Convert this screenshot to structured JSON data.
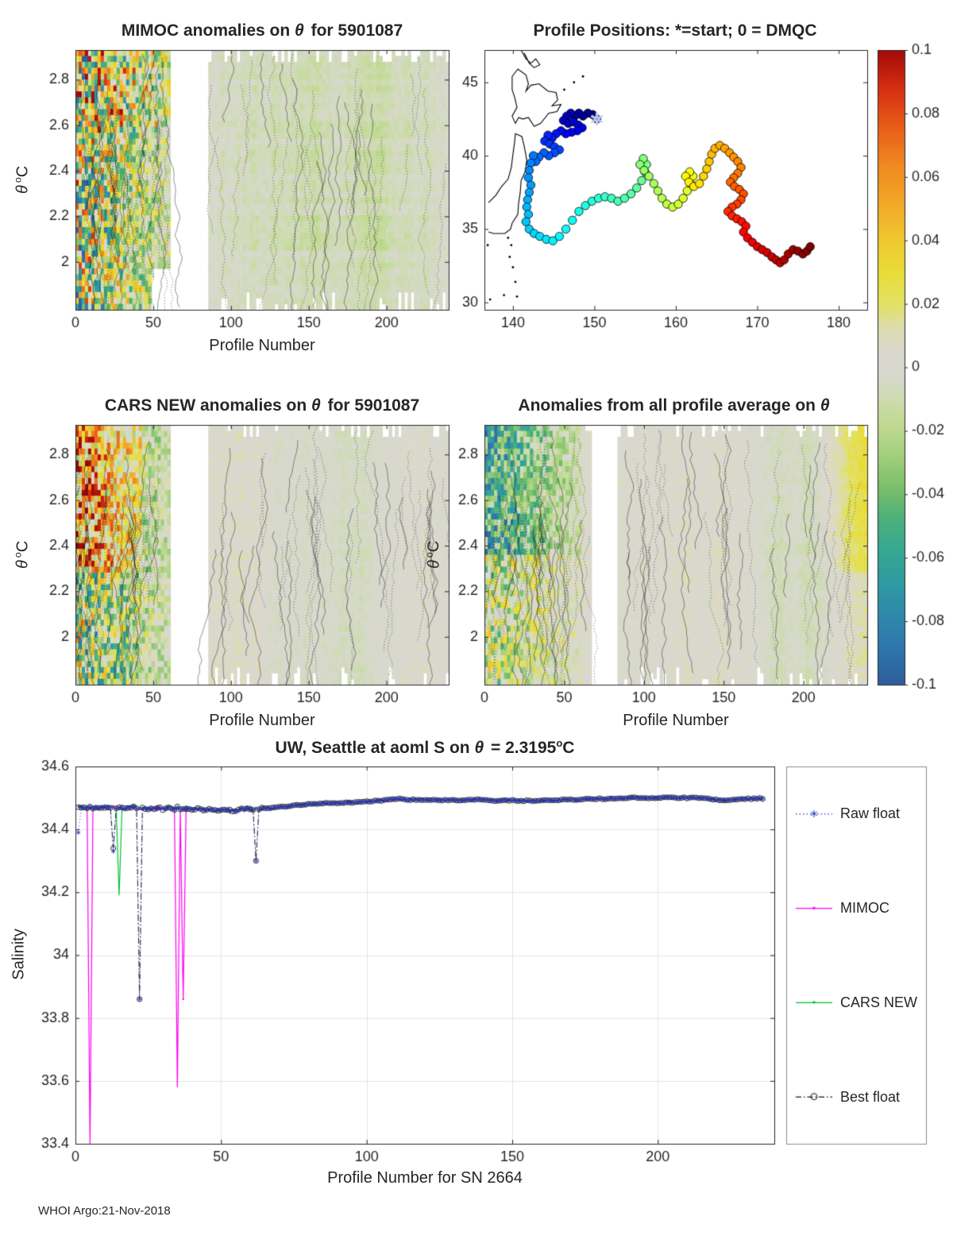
{
  "figure": {
    "footer": "WHOI Argo:21-Nov-2018",
    "bg": "#ffffff",
    "axis_color": "#262626",
    "grid_color": "#e4e4e4",
    "font_color": "#262626"
  },
  "colorbar": {
    "vmin": -0.1,
    "vmax": 0.1,
    "tick_values": [
      0.1,
      0.08,
      0.06,
      0.04,
      0.02,
      0,
      -0.02,
      -0.04,
      -0.06,
      -0.08,
      -0.1
    ],
    "tick_labels": [
      "0.1",
      "0.08",
      "0.06",
      "0.04",
      "0.02",
      "0",
      "-0.02",
      "-0.04",
      "-0.06",
      "-0.08",
      "-0.1"
    ],
    "stops": [
      [
        -0.1,
        "#2f5e9e"
      ],
      [
        -0.085,
        "#2e7dae"
      ],
      [
        -0.07,
        "#2f97a5"
      ],
      [
        -0.058,
        "#36a892"
      ],
      [
        -0.048,
        "#4cb07b"
      ],
      [
        -0.038,
        "#7abf6b"
      ],
      [
        -0.028,
        "#a2cf7c"
      ],
      [
        -0.018,
        "#c0da90"
      ],
      [
        -0.01,
        "#cedbb1"
      ],
      [
        -0.003,
        "#d7d9cb"
      ],
      [
        0.004,
        "#dad8d0"
      ],
      [
        0.012,
        "#dddcb2"
      ],
      [
        0.02,
        "#e2e163"
      ],
      [
        0.03,
        "#e9dc38"
      ],
      [
        0.04,
        "#efc92f"
      ],
      [
        0.052,
        "#f2a828"
      ],
      [
        0.064,
        "#f08821"
      ],
      [
        0.076,
        "#e85c19"
      ],
      [
        0.088,
        "#d42f12"
      ],
      [
        0.1,
        "#a50a0a"
      ]
    ]
  },
  "chart_data": [
    {
      "id": "mimoc",
      "type": "heatmap",
      "title": "MIMOC anomalies on θ for 5901087",
      "title_parts": {
        "pre": "MIMOC anomalies on ",
        "theta": "θ",
        "post": " for 5901087"
      },
      "xlabel": "Profile Number",
      "ylabel_parts": {
        "theta": "θ",
        "sup": "o",
        "post": "C"
      },
      "xlim": [
        0,
        240
      ],
      "ylim": [
        1.79,
        2.93
      ],
      "xtick_values": [
        0,
        50,
        100,
        150,
        200
      ],
      "xtick_labels": [
        "0",
        "50",
        "100",
        "150",
        "200"
      ],
      "ytick_values": [
        2.8,
        2.6,
        2.4,
        2.2,
        2
      ],
      "ytick_labels": [
        "2.8",
        "2.6",
        "2.4",
        "2.2",
        "2"
      ],
      "gap_profiles": [
        [
          62,
          86
        ]
      ],
      "strong_anomaly_profiles": [
        1,
        60
      ],
      "field_character": "near-zero gray/pale-green anomalies with dense solid and dotted contour lines; chaotic mixed red/blue anomalies in first 60 profiles"
    },
    {
      "id": "map",
      "type": "scatter",
      "title": "Profile Positions: *=start; 0 = DMQC",
      "xlim": [
        136.5,
        183.5
      ],
      "ylim": [
        29.5,
        47.2
      ],
      "xtick_values": [
        140,
        150,
        160,
        170,
        180
      ],
      "xtick_labels": [
        "140",
        "150",
        "160",
        "170",
        "180"
      ],
      "ytick_values": [
        30,
        35,
        40,
        45
      ],
      "ytick_labels": [
        "30",
        "35",
        "40",
        "45"
      ],
      "colormap": "jet",
      "start_marker": "*",
      "track_lonlat": [
        [
          150.3,
          42.5
        ],
        [
          149.8,
          42.8
        ],
        [
          149.2,
          42.9
        ],
        [
          148.6,
          42.7
        ],
        [
          148.1,
          42.9
        ],
        [
          147.6,
          42.7
        ],
        [
          147.1,
          42.9
        ],
        [
          146.6,
          42.7
        ],
        [
          146.2,
          42.4
        ],
        [
          146.8,
          42.2
        ],
        [
          147.4,
          42.3
        ],
        [
          148.0,
          42.1
        ],
        [
          148.5,
          41.9
        ],
        [
          147.9,
          41.7
        ],
        [
          147.2,
          41.6
        ],
        [
          146.5,
          41.5
        ],
        [
          145.9,
          41.7
        ],
        [
          145.3,
          41.5
        ],
        [
          144.8,
          41.2
        ],
        [
          144.3,
          41.4
        ],
        [
          143.9,
          41.0
        ],
        [
          144.5,
          40.8
        ],
        [
          145.1,
          40.6
        ],
        [
          145.7,
          40.4
        ],
        [
          145.1,
          40.2
        ],
        [
          144.4,
          40.0
        ],
        [
          143.8,
          40.2
        ],
        [
          143.2,
          39.9
        ],
        [
          142.8,
          39.6
        ],
        [
          142.5,
          40.0
        ],
        [
          142.2,
          39.5
        ],
        [
          142.0,
          39.0
        ],
        [
          141.9,
          38.5
        ],
        [
          142.2,
          38.0
        ],
        [
          142.0,
          37.5
        ],
        [
          141.8,
          37.0
        ],
        [
          141.7,
          36.5
        ],
        [
          141.9,
          36.0
        ],
        [
          141.6,
          35.5
        ],
        [
          142.0,
          35.0
        ],
        [
          142.6,
          34.7
        ],
        [
          143.3,
          34.5
        ],
        [
          144.1,
          34.3
        ],
        [
          144.9,
          34.2
        ],
        [
          145.7,
          34.5
        ],
        [
          146.5,
          35.0
        ],
        [
          147.3,
          35.6
        ],
        [
          148.1,
          36.2
        ],
        [
          148.9,
          36.6
        ],
        [
          149.7,
          36.9
        ],
        [
          150.5,
          37.1
        ],
        [
          151.3,
          37.2
        ],
        [
          152.1,
          37.1
        ],
        [
          152.9,
          36.9
        ],
        [
          153.7,
          37.1
        ],
        [
          154.5,
          37.4
        ],
        [
          155.2,
          37.8
        ],
        [
          155.8,
          38.3
        ],
        [
          156.2,
          38.9
        ],
        [
          156.4,
          39.4
        ],
        [
          156.0,
          39.8
        ],
        [
          155.6,
          39.4
        ],
        [
          156.1,
          39.0
        ],
        [
          156.7,
          38.6
        ],
        [
          157.3,
          38.1
        ],
        [
          157.8,
          37.6
        ],
        [
          158.3,
          37.1
        ],
        [
          158.9,
          36.7
        ],
        [
          159.6,
          36.5
        ],
        [
          160.3,
          36.7
        ],
        [
          160.9,
          37.1
        ],
        [
          161.4,
          37.6
        ],
        [
          161.8,
          38.1
        ],
        [
          162.1,
          38.6
        ],
        [
          161.7,
          38.9
        ],
        [
          161.2,
          38.6
        ],
        [
          161.6,
          38.2
        ],
        [
          162.2,
          37.9
        ],
        [
          162.9,
          38.1
        ],
        [
          163.4,
          38.6
        ],
        [
          163.8,
          39.1
        ],
        [
          164.1,
          39.6
        ],
        [
          164.4,
          40.1
        ],
        [
          164.8,
          40.5
        ],
        [
          165.4,
          40.7
        ],
        [
          166.0,
          40.5
        ],
        [
          166.6,
          40.2
        ],
        [
          167.1,
          39.9
        ],
        [
          167.6,
          39.6
        ],
        [
          168.0,
          39.2
        ],
        [
          167.6,
          38.8
        ],
        [
          167.1,
          38.5
        ],
        [
          166.7,
          38.2
        ],
        [
          167.2,
          37.9
        ],
        [
          167.8,
          37.7
        ],
        [
          168.3,
          37.4
        ],
        [
          168.0,
          37.0
        ],
        [
          167.5,
          36.7
        ],
        [
          166.9,
          36.5
        ],
        [
          166.4,
          36.2
        ],
        [
          166.9,
          35.9
        ],
        [
          167.5,
          35.7
        ],
        [
          168.1,
          35.5
        ],
        [
          168.6,
          35.2
        ],
        [
          168.3,
          34.8
        ],
        [
          168.8,
          34.4
        ],
        [
          169.4,
          34.1
        ],
        [
          170.0,
          33.8
        ],
        [
          170.6,
          33.6
        ],
        [
          171.2,
          33.4
        ],
        [
          171.8,
          33.1
        ],
        [
          172.3,
          32.9
        ],
        [
          172.8,
          32.7
        ],
        [
          173.3,
          32.9
        ],
        [
          173.8,
          33.3
        ],
        [
          174.4,
          33.6
        ],
        [
          175.0,
          33.5
        ],
        [
          175.6,
          33.3
        ],
        [
          176.1,
          33.5
        ],
        [
          176.5,
          33.8
        ]
      ],
      "coastlines": [
        [
          [
            139.9,
            45.4
          ],
          [
            140.6,
            45.9
          ],
          [
            141.6,
            45.5
          ],
          [
            141.9,
            44.9
          ],
          [
            141.6,
            44.4
          ],
          [
            142.2,
            44.8
          ],
          [
            143.2,
            44.9
          ],
          [
            144.3,
            44.4
          ],
          [
            145.3,
            44.3
          ],
          [
            145.5,
            43.8
          ],
          [
            144.8,
            43.4
          ],
          [
            145.9,
            43.5
          ],
          [
            145.4,
            43.0
          ],
          [
            144.4,
            42.9
          ],
          [
            143.4,
            42.2
          ],
          [
            142.6,
            42.0
          ],
          [
            141.9,
            42.6
          ],
          [
            141.2,
            42.5
          ],
          [
            140.7,
            42.6
          ],
          [
            140.3,
            42.2
          ],
          [
            139.9,
            42.7
          ],
          [
            140.5,
            43.3
          ],
          [
            140.2,
            44.0
          ],
          [
            139.9,
            44.5
          ],
          [
            139.9,
            45.4
          ]
        ],
        [
          [
            141.0,
            47.2
          ],
          [
            141.6,
            46.6
          ],
          [
            142.2,
            46.3
          ],
          [
            142.8,
            46.6
          ],
          [
            143.3,
            46.2
          ],
          [
            142.6,
            46.0
          ],
          [
            142.0,
            46.3
          ],
          [
            141.4,
            47.0
          ]
        ],
        [
          [
            137.0,
            36.8
          ],
          [
            137.9,
            37.3
          ],
          [
            138.6,
            37.9
          ],
          [
            139.4,
            38.4
          ],
          [
            139.8,
            39.2
          ],
          [
            140.0,
            40.1
          ],
          [
            140.2,
            40.9
          ],
          [
            140.3,
            41.5
          ],
          [
            141.1,
            41.3
          ],
          [
            141.4,
            40.6
          ],
          [
            141.7,
            39.7
          ],
          [
            141.5,
            38.9
          ],
          [
            141.0,
            38.3
          ],
          [
            140.9,
            37.5
          ],
          [
            140.7,
            36.8
          ],
          [
            140.6,
            36.0
          ],
          [
            139.9,
            35.4
          ],
          [
            139.7,
            35.0
          ],
          [
            139.0,
            34.7
          ],
          [
            138.3,
            34.7
          ],
          [
            137.6,
            34.7
          ],
          [
            137.0,
            34.8
          ]
        ]
      ],
      "islands": [
        [
          139.4,
          34.4
        ],
        [
          139.8,
          33.9
        ],
        [
          139.6,
          33.1
        ],
        [
          140.0,
          32.4
        ],
        [
          140.3,
          31.4
        ],
        [
          140.5,
          30.4
        ],
        [
          138.9,
          30.5
        ],
        [
          136.9,
          33.9
        ],
        [
          137.2,
          30.2
        ],
        [
          146.3,
          44.5
        ],
        [
          147.5,
          45.0
        ],
        [
          148.6,
          45.4
        ]
      ]
    },
    {
      "id": "cars",
      "type": "heatmap",
      "title": "CARS NEW anomalies on θ for 5901087",
      "title_parts": {
        "pre": "CARS NEW anomalies on ",
        "theta": "θ",
        "post": " for 5901087"
      },
      "xlabel": "Profile Number",
      "ylabel_parts": {
        "theta": "θ",
        "sup": "o",
        "post": "C"
      },
      "xlim": [
        0,
        240
      ],
      "ylim": [
        1.79,
        2.93
      ],
      "xtick_values": [
        0,
        50,
        100,
        150,
        200
      ],
      "xtick_labels": [
        "0",
        "50",
        "100",
        "150",
        "200"
      ],
      "ytick_values": [
        2.8,
        2.6,
        2.4,
        2.2,
        2
      ],
      "ytick_labels": [
        "2.8",
        "2.6",
        "2.4",
        "2.2",
        "2"
      ],
      "gap_profiles": [
        [
          62,
          86
        ]
      ],
      "strong_anomaly_profiles": [
        1,
        60
      ],
      "field_character": "large positive (red) anomaly blob over first ~40 profiles in upper half; elsewhere near-zero with contour lines"
    },
    {
      "id": "allavg",
      "type": "heatmap",
      "title": "Anomalies from all profile average on θ",
      "title_parts": {
        "pre": "Anomalies from all profile average on ",
        "theta": "θ",
        "post": ""
      },
      "xlabel": "Profile Number",
      "ylabel_parts": {
        "theta": "θ",
        "sup": "o",
        "post": "C"
      },
      "xlim": [
        0,
        240
      ],
      "ylim": [
        1.79,
        2.93
      ],
      "xtick_values": [
        0,
        50,
        100,
        150,
        200
      ],
      "xtick_labels": [
        "0",
        "50",
        "100",
        "150",
        "200"
      ],
      "ytick_values": [
        2.8,
        2.6,
        2.4,
        2.2,
        2
      ],
      "ytick_labels": [
        "2.8",
        "2.6",
        "2.4",
        "2.2",
        "2"
      ],
      "gap_profiles": [
        [
          67,
          84
        ]
      ],
      "strong_anomaly_profiles": [
        1,
        60
      ],
      "positive_tint_profiles": [
        206,
        236
      ],
      "field_character": "negative (blue/teal) anomalies in first ~60 profiles near top; yellow positive tint at right edge; elsewhere near-zero"
    },
    {
      "id": "salinity",
      "type": "line",
      "title": "UW, Seattle at aoml S on θ = 2.3195°C",
      "title_parts": {
        "pre": "UW, Seattle at aoml S on ",
        "theta": "θ",
        "mid": " = 2.3195",
        "sup": "o",
        "post": "C"
      },
      "xlabel": "Profile Number for SN 2664",
      "ylabel": "Salinity",
      "xlim": [
        0,
        240
      ],
      "ylim": [
        33.4,
        34.6
      ],
      "xtick_values": [
        0,
        50,
        100,
        150,
        200
      ],
      "xtick_labels": [
        "0",
        "50",
        "100",
        "150",
        "200"
      ],
      "ytick_values": [
        33.4,
        33.6,
        33.8,
        34,
        34.2,
        34.4,
        34.6
      ],
      "ytick_labels": [
        "33.4",
        "33.6",
        "33.8",
        "34",
        "34.2",
        "34.4",
        "34.6"
      ],
      "grid": true,
      "n_profiles": 236,
      "approx_level": 34.48,
      "series": [
        {
          "name": "Raw float",
          "color": "#2a35c8",
          "line": "dotted",
          "marker": "asterisk",
          "dips": [
            [
              1,
              34.39
            ],
            [
              13,
              34.33
            ],
            [
              22,
              33.86
            ],
            [
              62,
              34.3
            ]
          ]
        },
        {
          "name": "MIMOC",
          "color": "#ff00f0",
          "line": "solid",
          "marker": "dot",
          "dips": [
            [
              5,
              33.4
            ],
            [
              35,
              33.58
            ],
            [
              37,
              33.86
            ]
          ]
        },
        {
          "name": "CARS NEW",
          "color": "#00c432",
          "line": "solid",
          "marker": "dot",
          "dips": [
            [
              15,
              34.19
            ]
          ]
        },
        {
          "name": "Best float",
          "color": "#141414",
          "line": "dashdot",
          "marker": "circle",
          "dips": [
            [
              13,
              34.34
            ],
            [
              22,
              33.86
            ],
            [
              62,
              34.3
            ]
          ]
        }
      ],
      "legend": [
        "Raw float",
        "MIMOC",
        "CARS NEW",
        "Best float"
      ]
    }
  ]
}
